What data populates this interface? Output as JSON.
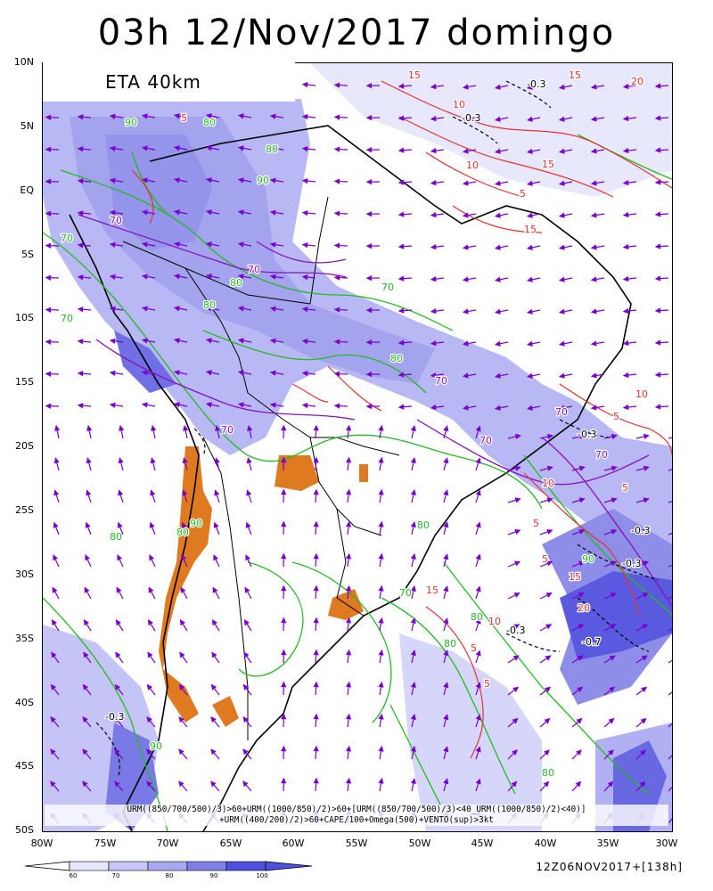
{
  "title": "03h 12/Nov/2017 domingo",
  "model_label": "ETA 40km",
  "valid_time": "12Z06NOV2017+[138h]",
  "formula_line1": "URM((850/700/500)/3)>60+URM((1000/850)/2)>60+[URM((850/700/500)/3)<40_URM((1000/850)/2)<40)]",
  "formula_line2": "+URM((400/200)/2)>60+CAPE/100+Omega(500)+VENTO(sup)>3kt",
  "lat_labels": [
    "10N",
    "5N",
    "EQ",
    "5S",
    "10S",
    "15S",
    "20S",
    "25S",
    "30S",
    "35S",
    "40S",
    "45S",
    "50S"
  ],
  "lon_labels": [
    "80W",
    "75W",
    "70W",
    "65W",
    "60W",
    "55W",
    "50W",
    "45W",
    "40W",
    "35W",
    "30W"
  ],
  "colorbar": {
    "labels": [
      "60",
      "70",
      "80",
      "90",
      "100"
    ],
    "colors": [
      "#e6e6ff",
      "#c8c8f8",
      "#a8a8f0",
      "#8080e8",
      "#5050e0"
    ]
  },
  "contour_labels": {
    "green": [
      "90",
      "80",
      "70",
      "80",
      "90",
      "80",
      "80",
      "70",
      "70",
      "80",
      "90",
      "80",
      "80",
      "90",
      "80",
      "70",
      "80",
      "90",
      "80",
      "80"
    ],
    "purple": [
      "70",
      "70",
      "70",
      "70",
      "70",
      "70",
      "70"
    ],
    "red": [
      "15",
      "10",
      "15",
      "20",
      "15",
      "10",
      "5",
      "5",
      "10",
      "15",
      "20",
      "15",
      "5",
      "10",
      "5",
      "5",
      "10",
      "15",
      "5",
      "5",
      "5"
    ],
    "black": [
      "-0.3",
      "-0.3",
      "-0.3",
      "-0.3",
      "-0.3",
      "-0.3",
      "-0.7",
      "-0.3"
    ]
  },
  "colors": {
    "humidity_shade": "#a8a8f0",
    "cape_fill": "#e07a20",
    "green_contour": "#22bb22",
    "red_contour": "#e83030",
    "purple_contour": "#8a10c0",
    "vector": "#7a00d0",
    "coast": "#000000"
  }
}
